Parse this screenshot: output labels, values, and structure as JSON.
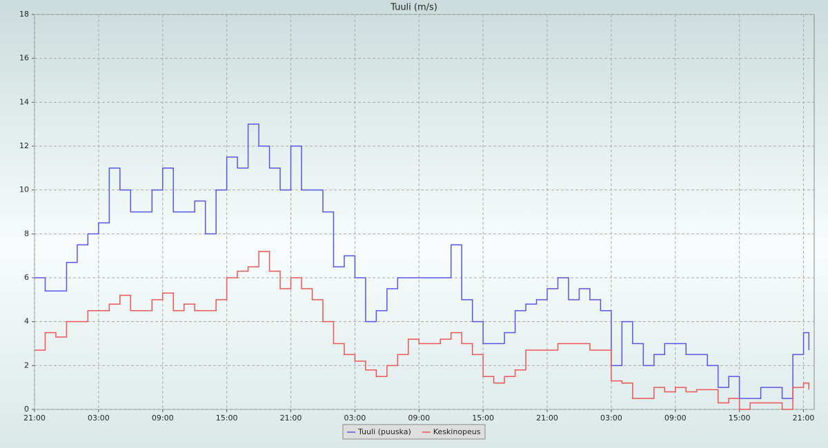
{
  "chart_data": {
    "type": "line",
    "title": "Tuuli (m/s)",
    "step": true,
    "x": [
      0,
      1,
      2,
      3,
      4,
      5,
      6,
      7,
      8,
      9,
      10,
      11,
      12,
      13,
      14,
      15,
      16,
      17,
      18,
      19,
      20,
      21,
      22,
      23,
      24,
      25,
      26,
      27,
      28,
      29,
      30,
      31,
      32,
      33,
      34,
      35,
      36,
      37,
      38,
      39,
      40,
      41,
      42,
      43,
      44,
      45,
      46,
      47,
      48,
      49,
      50,
      51,
      52,
      53,
      54,
      55,
      56,
      57,
      58,
      59,
      60,
      61,
      62,
      63,
      64,
      65,
      66,
      67,
      68,
      69,
      70,
      71,
      72,
      72.5
    ],
    "series": [
      {
        "name": "Tuuli (puuska)",
        "color": "#5555ee",
        "values": [
          6,
          5.4,
          5.4,
          6.7,
          7.5,
          8,
          8.5,
          11,
          10,
          9,
          9,
          10,
          11,
          9,
          9,
          9.5,
          8,
          10,
          11.5,
          11,
          13,
          12,
          11,
          10,
          12,
          10,
          10,
          9,
          6.5,
          7,
          6,
          4,
          4.5,
          5.5,
          6,
          6,
          6,
          6,
          6,
          7.5,
          5,
          4,
          3,
          3,
          3.5,
          4.5,
          4.8,
          5,
          5.5,
          6,
          5,
          5.5,
          5,
          4.5,
          2,
          4,
          3,
          2,
          2.5,
          3,
          3,
          2.5,
          2.5,
          2,
          1,
          1.5,
          0.5,
          0.5,
          1,
          1,
          0.5,
          2.5,
          3.5,
          2.7
        ]
      },
      {
        "name": "Keskinopeus",
        "color": "#ee5555",
        "values": [
          2.7,
          3.5,
          3.3,
          4,
          4,
          4.5,
          4.5,
          4.8,
          5.2,
          4.5,
          4.5,
          5,
          5.3,
          4.5,
          4.8,
          4.5,
          4.5,
          5,
          6,
          6.3,
          6.5,
          7.2,
          6.3,
          5.5,
          6,
          5.5,
          5,
          4,
          3,
          2.5,
          2.2,
          1.8,
          1.5,
          2,
          2.5,
          3.2,
          3,
          3,
          3.2,
          3.5,
          3,
          2.5,
          1.5,
          1.2,
          1.5,
          1.8,
          2.7,
          2.7,
          2.7,
          3,
          3,
          3,
          2.7,
          2.7,
          1.3,
          1.2,
          0.5,
          0.5,
          1,
          0.8,
          1,
          0.8,
          0.9,
          0.9,
          0.3,
          0.5,
          0,
          0.3,
          0.3,
          0.3,
          0,
          1,
          1.2,
          0.9
        ]
      }
    ],
    "xlim": [
      0,
      73
    ],
    "xticks": [
      {
        "value": 0,
        "label": "21:00"
      },
      {
        "value": 6,
        "label": "03:00"
      },
      {
        "value": 12,
        "label": "09:00"
      },
      {
        "value": 18,
        "label": "15:00"
      },
      {
        "value": 24,
        "label": "21:00"
      },
      {
        "value": 30,
        "label": "03:00"
      },
      {
        "value": 36,
        "label": "09:00"
      },
      {
        "value": 42,
        "label": "15:00"
      },
      {
        "value": 48,
        "label": "21:00"
      },
      {
        "value": 54,
        "label": "03:00"
      },
      {
        "value": 60,
        "label": "09:00"
      },
      {
        "value": 66,
        "label": "15:00"
      },
      {
        "value": 72,
        "label": "21:00"
      }
    ],
    "ylim": [
      0,
      18
    ],
    "yticks": [
      0,
      2,
      4,
      6,
      8,
      10,
      12,
      14,
      16,
      18
    ],
    "grid": true,
    "legend": "bottom"
  }
}
